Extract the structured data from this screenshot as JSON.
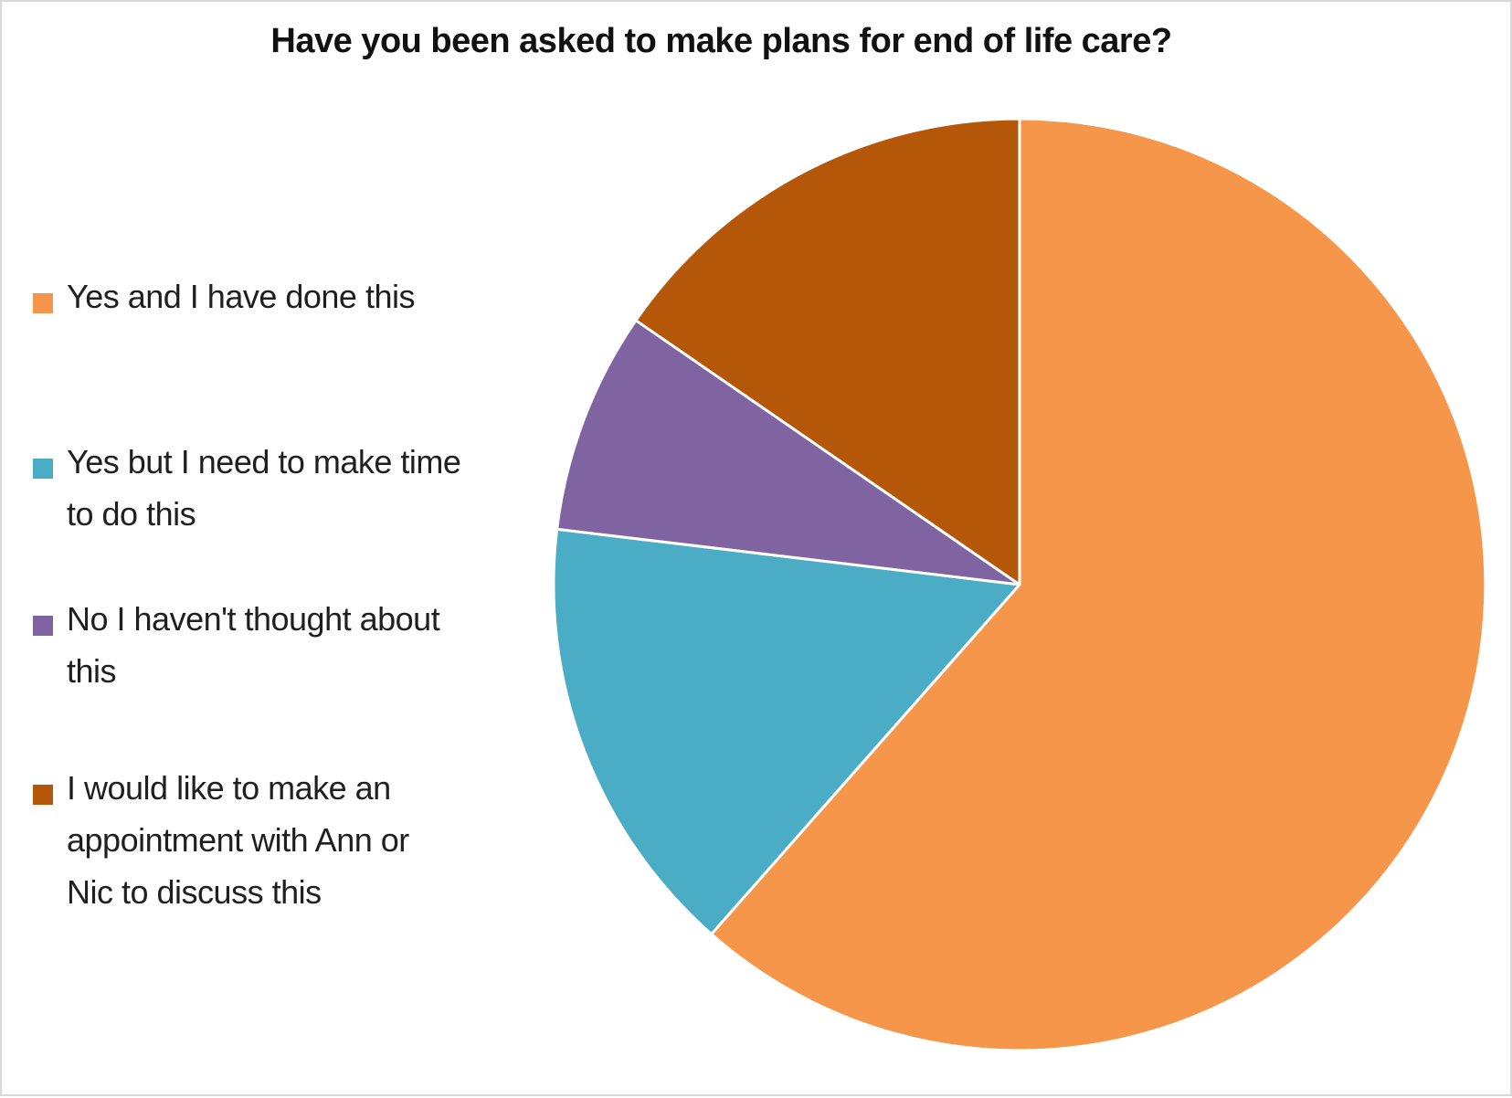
{
  "title": {
    "text": "Have you been asked to make plans for end of life care?"
  },
  "legend": {
    "position": "left",
    "items": [
      {
        "label": "Yes and I have done this",
        "lines": [
          "Yes and I have done this"
        ],
        "color": "#F5964A"
      },
      {
        "label": "Yes but I need to make time to do this",
        "lines": [
          "Yes but I need to make time",
          "to do this"
        ],
        "color": "#4BACC6"
      },
      {
        "label": "No I haven't thought about this",
        "lines": [
          "No I haven't thought about",
          "this"
        ],
        "color": "#8064A2"
      },
      {
        "label": "I would like to make an appointment with Ann or Nic to discuss this",
        "lines": [
          "I would like to make an",
          "appointment with Ann or",
          "Nic to discuss this"
        ],
        "color": "#B45709"
      }
    ]
  },
  "chart_data": {
    "type": "pie",
    "title": "Have you been asked to make plans for end of life care?",
    "labels": [
      "Yes and I have done this",
      "Yes but I need to make time to do this",
      "No I haven't thought about this",
      "I would like to make an appointment with Ann or Nic to discuss this"
    ],
    "values_pct": [
      61.5,
      15.4,
      7.7,
      15.4
    ],
    "slice_angles_deg": [
      221.5,
      55.4,
      27.7,
      55.4
    ],
    "colors": [
      "#F5964A",
      "#4BACC6",
      "#8064A2",
      "#B45709"
    ],
    "start_angle_deg": 0,
    "direction": "clockwise",
    "legend_position": "left",
    "data_labels": "none",
    "separator_color": "#FFFFFF",
    "grid": false
  }
}
